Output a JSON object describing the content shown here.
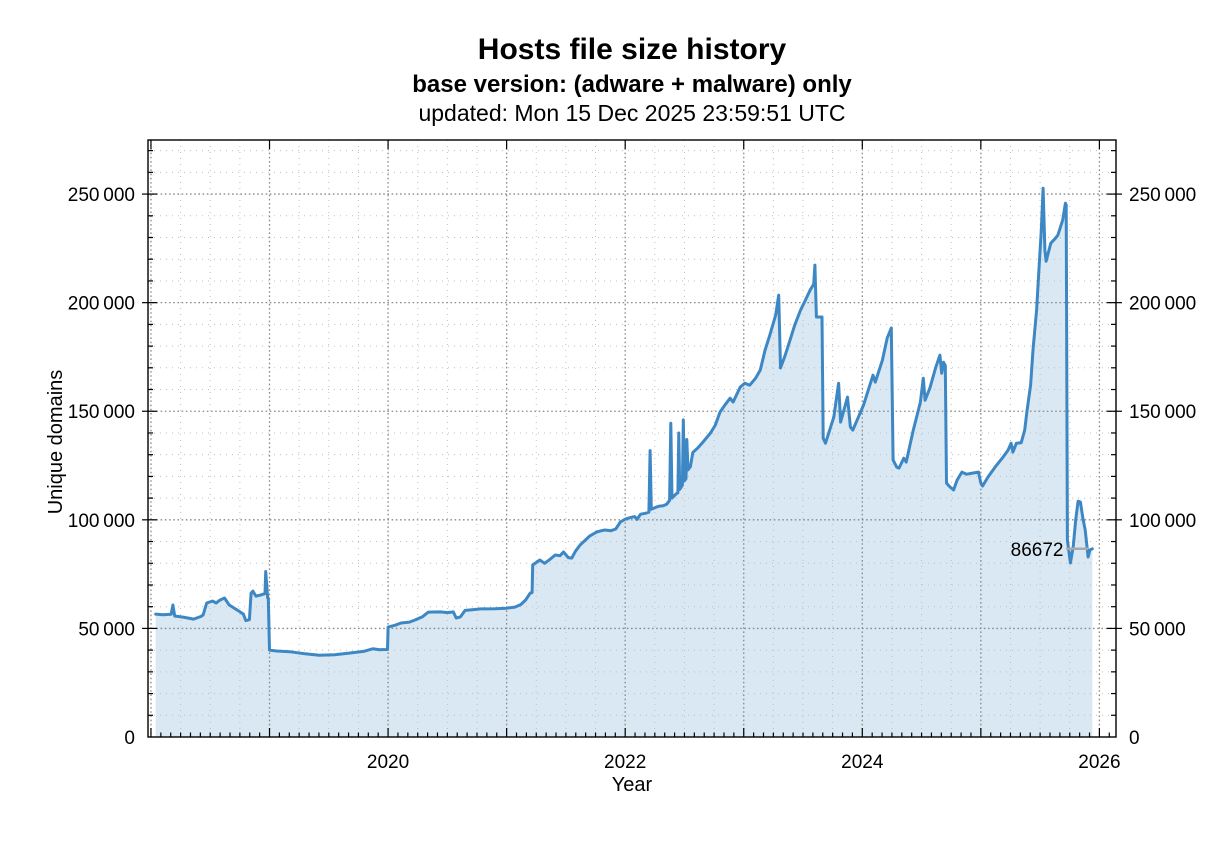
{
  "header": {
    "title": "Hosts file size history",
    "subtitle": "base version: (adware + malware) only",
    "updated": "updated: Mon 15 Dec 2025 23:59:51 UTC"
  },
  "chart_data": {
    "type": "area",
    "title": "Hosts file size history",
    "subtitle": "base version: (adware + malware) only",
    "updated": "updated: Mon 15 Dec 2025 23:59:51 UTC",
    "legend": "none",
    "grid": {
      "shown": true,
      "minor_color": "#bfbfbf",
      "major_color": "#8a8a8a"
    },
    "x_axis": {
      "label": "Year",
      "range": [
        2017.975,
        2026.14
      ],
      "labeled_ticks": [
        2020,
        2022,
        2024,
        2026
      ],
      "major_grid_step": 1,
      "minor_grid_step": 0.25,
      "minor_tick_step": 0.0833333
    },
    "y_axis": {
      "label": "Unique domains",
      "range": [
        0,
        274900
      ],
      "minor_tick_step": 10000,
      "major_ticks": [
        {
          "value": 0,
          "label": "0"
        },
        {
          "value": 50000,
          "label": "50 000"
        },
        {
          "value": 100000,
          "label": "100 000"
        },
        {
          "value": 150000,
          "label": "150 000"
        },
        {
          "value": 200000,
          "label": "200 000"
        },
        {
          "value": 250000,
          "label": "250 000"
        }
      ]
    },
    "annotation": {
      "label": "86672",
      "value": 86672,
      "text_year": 2025.697,
      "leader_from_year": 2025.72,
      "leader_to_year": 2025.905,
      "color": "#a8a8a8"
    },
    "series": [
      {
        "name": "unique-domains",
        "line_color": "#3c87c4",
        "fill_color": "#d9e8f2",
        "points": [
          [
            2018.04,
            56600
          ],
          [
            2018.1,
            56300
          ],
          [
            2018.17,
            56500
          ],
          [
            2018.185,
            60800
          ],
          [
            2018.2,
            55700
          ],
          [
            2018.27,
            55200
          ],
          [
            2018.31,
            54800
          ],
          [
            2018.36,
            54300
          ],
          [
            2018.42,
            55500
          ],
          [
            2018.44,
            56200
          ],
          [
            2018.47,
            61700
          ],
          [
            2018.52,
            62600
          ],
          [
            2018.55,
            61700
          ],
          [
            2018.58,
            63000
          ],
          [
            2018.6,
            63500
          ],
          [
            2018.62,
            64000
          ],
          [
            2018.66,
            60800
          ],
          [
            2018.7,
            59400
          ],
          [
            2018.74,
            58000
          ],
          [
            2018.78,
            56600
          ],
          [
            2018.8,
            53600
          ],
          [
            2018.83,
            54000
          ],
          [
            2018.845,
            66300
          ],
          [
            2018.86,
            67200
          ],
          [
            2018.885,
            64900
          ],
          [
            2018.92,
            65300
          ],
          [
            2018.95,
            65800
          ],
          [
            2018.962,
            66000
          ],
          [
            2018.968,
            76200
          ],
          [
            2018.985,
            64000
          ],
          [
            2018.99,
            63800
          ],
          [
            2019.0,
            40000
          ],
          [
            2019.06,
            39600
          ],
          [
            2019.17,
            39300
          ],
          [
            2019.3,
            38300
          ],
          [
            2019.42,
            37600
          ],
          [
            2019.55,
            37900
          ],
          [
            2019.68,
            38700
          ],
          [
            2019.8,
            39500
          ],
          [
            2019.87,
            40600
          ],
          [
            2019.93,
            40200
          ],
          [
            2019.995,
            40300
          ],
          [
            2020.0,
            50600
          ],
          [
            2020.06,
            51500
          ],
          [
            2020.11,
            52500
          ],
          [
            2020.18,
            52900
          ],
          [
            2020.23,
            53900
          ],
          [
            2020.29,
            55400
          ],
          [
            2020.34,
            57500
          ],
          [
            2020.44,
            57600
          ],
          [
            2020.5,
            57300
          ],
          [
            2020.55,
            57600
          ],
          [
            2020.575,
            54800
          ],
          [
            2020.61,
            55300
          ],
          [
            2020.65,
            58300
          ],
          [
            2020.71,
            58600
          ],
          [
            2020.78,
            59000
          ],
          [
            2020.9,
            59100
          ],
          [
            2021.0,
            59300
          ],
          [
            2021.07,
            59800
          ],
          [
            2021.12,
            61000
          ],
          [
            2021.16,
            63100
          ],
          [
            2021.2,
            66300
          ],
          [
            2021.215,
            66500
          ],
          [
            2021.22,
            79200
          ],
          [
            2021.28,
            81500
          ],
          [
            2021.32,
            80000
          ],
          [
            2021.37,
            82000
          ],
          [
            2021.41,
            83800
          ],
          [
            2021.45,
            83500
          ],
          [
            2021.48,
            85200
          ],
          [
            2021.52,
            82600
          ],
          [
            2021.55,
            82400
          ],
          [
            2021.58,
            85500
          ],
          [
            2021.62,
            88400
          ],
          [
            2021.66,
            90500
          ],
          [
            2021.7,
            92500
          ],
          [
            2021.76,
            94400
          ],
          [
            2021.8,
            95000
          ],
          [
            2021.83,
            95300
          ],
          [
            2021.88,
            95000
          ],
          [
            2021.92,
            95800
          ],
          [
            2021.96,
            99000
          ],
          [
            2022.0,
            100300
          ],
          [
            2022.04,
            101000
          ],
          [
            2022.08,
            101500
          ],
          [
            2022.1,
            100200
          ],
          [
            2022.13,
            102600
          ],
          [
            2022.17,
            103000
          ],
          [
            2022.2,
            103500
          ],
          [
            2022.21,
            131900
          ],
          [
            2022.22,
            104900
          ],
          [
            2022.26,
            105800
          ],
          [
            2022.29,
            106300
          ],
          [
            2022.32,
            106500
          ],
          [
            2022.35,
            107200
          ],
          [
            2022.375,
            109000
          ],
          [
            2022.385,
            144500
          ],
          [
            2022.395,
            110000
          ],
          [
            2022.43,
            112000
          ],
          [
            2022.445,
            112500
          ],
          [
            2022.452,
            140000
          ],
          [
            2022.46,
            114000
          ],
          [
            2022.483,
            116000
          ],
          [
            2022.49,
            146000
          ],
          [
            2022.5,
            118000
          ],
          [
            2022.513,
            119000
          ],
          [
            2022.52,
            137000
          ],
          [
            2022.53,
            123000
          ],
          [
            2022.55,
            124500
          ],
          [
            2022.57,
            131000
          ],
          [
            2022.61,
            133000
          ],
          [
            2022.66,
            136000
          ],
          [
            2022.72,
            140000
          ],
          [
            2022.76,
            143600
          ],
          [
            2022.8,
            149600
          ],
          [
            2022.84,
            152800
          ],
          [
            2022.885,
            156000
          ],
          [
            2022.91,
            154200
          ],
          [
            2022.97,
            161100
          ],
          [
            2023.01,
            162900
          ],
          [
            2023.05,
            162000
          ],
          [
            2023.1,
            165200
          ],
          [
            2023.14,
            169000
          ],
          [
            2023.18,
            178200
          ],
          [
            2023.22,
            185000
          ],
          [
            2023.27,
            194300
          ],
          [
            2023.295,
            203500
          ],
          [
            2023.31,
            169900
          ],
          [
            2023.35,
            175800
          ],
          [
            2023.39,
            182700
          ],
          [
            2023.43,
            189600
          ],
          [
            2023.48,
            196600
          ],
          [
            2023.52,
            201200
          ],
          [
            2023.56,
            205800
          ],
          [
            2023.59,
            208500
          ],
          [
            2023.6,
            217300
          ],
          [
            2023.613,
            193400
          ],
          [
            2023.66,
            193400
          ],
          [
            2023.67,
            137600
          ],
          [
            2023.69,
            135300
          ],
          [
            2023.76,
            147300
          ],
          [
            2023.8,
            162900
          ],
          [
            2023.817,
            145000
          ],
          [
            2023.875,
            156500
          ],
          [
            2023.9,
            142700
          ],
          [
            2023.92,
            141300
          ],
          [
            2024.01,
            152800
          ],
          [
            2024.09,
            166600
          ],
          [
            2024.11,
            163400
          ],
          [
            2024.17,
            173500
          ],
          [
            2024.21,
            183700
          ],
          [
            2024.245,
            188300
          ],
          [
            2024.26,
            127500
          ],
          [
            2024.29,
            124300
          ],
          [
            2024.31,
            123800
          ],
          [
            2024.35,
            128400
          ],
          [
            2024.37,
            126600
          ],
          [
            2024.43,
            141300
          ],
          [
            2024.49,
            154200
          ],
          [
            2024.515,
            165200
          ],
          [
            2024.53,
            155100
          ],
          [
            2024.57,
            160700
          ],
          [
            2024.62,
            170300
          ],
          [
            2024.655,
            175800
          ],
          [
            2024.67,
            167500
          ],
          [
            2024.685,
            172600
          ],
          [
            2024.7,
            171000
          ],
          [
            2024.71,
            116900
          ],
          [
            2024.74,
            115100
          ],
          [
            2024.77,
            113800
          ],
          [
            2024.8,
            118300
          ],
          [
            2024.84,
            122000
          ],
          [
            2024.88,
            121000
          ],
          [
            2024.93,
            121500
          ],
          [
            2024.98,
            122000
          ],
          [
            2025.0,
            117000
          ],
          [
            2025.015,
            115600
          ],
          [
            2025.06,
            119700
          ],
          [
            2025.12,
            124300
          ],
          [
            2025.18,
            128400
          ],
          [
            2025.23,
            132100
          ],
          [
            2025.255,
            135300
          ],
          [
            2025.27,
            131200
          ],
          [
            2025.3,
            135300
          ],
          [
            2025.34,
            135500
          ],
          [
            2025.37,
            141300
          ],
          [
            2025.39,
            150500
          ],
          [
            2025.42,
            162000
          ],
          [
            2025.44,
            178200
          ],
          [
            2025.47,
            196600
          ],
          [
            2025.49,
            215000
          ],
          [
            2025.51,
            233400
          ],
          [
            2025.525,
            252700
          ],
          [
            2025.54,
            224200
          ],
          [
            2025.55,
            219100
          ],
          [
            2025.59,
            227400
          ],
          [
            2025.63,
            229700
          ],
          [
            2025.65,
            231100
          ],
          [
            2025.69,
            238000
          ],
          [
            2025.713,
            245800
          ],
          [
            2025.72,
            245000
          ],
          [
            2025.73,
            90700
          ],
          [
            2025.755,
            80100
          ],
          [
            2025.78,
            88000
          ],
          [
            2025.8,
            100000
          ],
          [
            2025.82,
            108600
          ],
          [
            2025.84,
            108200
          ],
          [
            2025.86,
            101000
          ],
          [
            2025.88,
            95300
          ],
          [
            2025.905,
            82900
          ],
          [
            2025.92,
            86100
          ],
          [
            2025.94,
            86672
          ]
        ]
      }
    ]
  }
}
